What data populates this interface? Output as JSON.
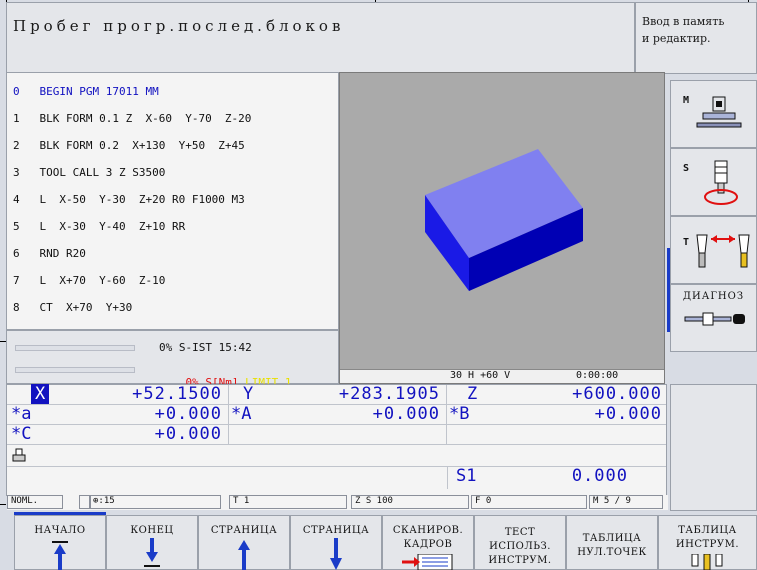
{
  "header": {
    "title": "Пробег прогр.послед.блоков",
    "mode_line1": "Ввод в память",
    "mode_line2": "и редактир."
  },
  "program": {
    "lines": [
      {
        "num": "0",
        "text": "BEGIN PGM 17011 MM"
      },
      {
        "num": "1",
        "text": "BLK FORM 0.1 Z  X-60  Y-70  Z-20"
      },
      {
        "num": "2",
        "text": "BLK FORM 0.2  X+130  Y+50  Z+45"
      },
      {
        "num": "3",
        "text": "TOOL CALL 3 Z S3500"
      },
      {
        "num": "4",
        "text": "L  X-50  Y-30  Z+20 R0 F1000 M3"
      },
      {
        "num": "5",
        "text": "L  X-30  Y-40  Z+10 RR"
      },
      {
        "num": "6",
        "text": "RND R20"
      },
      {
        "num": "7",
        "text": "L  X+70  Y-60  Z-10"
      },
      {
        "num": "8",
        "text": "CT  X+70  Y+30"
      }
    ]
  },
  "status": {
    "override1": "0% S-IST 15:42",
    "override2_prefix": "0% S[Nm]",
    "override2_suffix": "LIMIT 1"
  },
  "graphic": {
    "view": "30 H +60 V",
    "time": "0:00:00",
    "colors": {
      "top": "#8080f0",
      "front": "#1a1ae6",
      "side": "#0000b4"
    }
  },
  "softkeys_vertical": [
    {
      "label": "M",
      "icon": "machine-table-icon"
    },
    {
      "label": "S",
      "icon": "spindle-icon"
    },
    {
      "label": "T",
      "icon": "tool-change-icon"
    },
    {
      "label": "ДИАГНОЗ",
      "icon": "diagnosis-icon"
    }
  ],
  "positions": {
    "x_label": "X",
    "x_value": "+52.1500",
    "y_label": "Y",
    "y_value": "+283.1905",
    "z_label": "Z",
    "z_value": "+600.000",
    "a_label": "*a",
    "a_value": "+0.000",
    "A_label": "*A",
    "A_value": "+0.000",
    "B_label": "*B",
    "B_value": "+0.000",
    "C_label": "*C",
    "C_value": "+0.000",
    "s1_label": "S1",
    "s1_value": "0.000"
  },
  "status_line": {
    "mode": "NOML.",
    "tool_num": "15",
    "t": "T 1",
    "zs": "Z S 100",
    "f": "F 0",
    "m": "M 5 / 9"
  },
  "softkeys_horizontal": [
    {
      "line1": "НАЧАЛО",
      "line2": "",
      "line3": "",
      "icon": "arrow-up-bar-icon"
    },
    {
      "line1": "КОНЕЦ",
      "line2": "",
      "line3": "",
      "icon": "arrow-down-bar-icon"
    },
    {
      "line1": "СТРАНИЦА",
      "line2": "",
      "line3": "",
      "icon": "arrow-up-icon"
    },
    {
      "line1": "СТРАНИЦА",
      "line2": "",
      "line3": "",
      "icon": "arrow-down-icon"
    },
    {
      "line1": "СКАНИРОВ.",
      "line2": "КАДРОВ",
      "line3": "",
      "icon": "scan-blocks-icon"
    },
    {
      "line1": "ТЕСТ",
      "line2": "ИСПОЛЬЗ.",
      "line3": "ИНСТРУМ.",
      "icon": ""
    },
    {
      "line1": "ТАБЛИЦА",
      "line2": "НУЛ.ТОЧЕК",
      "line3": "",
      "icon": ""
    },
    {
      "line1": "ТАБЛИЦА",
      "line2": "ИНСТРУМ.",
      "line3": "",
      "icon": "tool-table-icon"
    }
  ]
}
